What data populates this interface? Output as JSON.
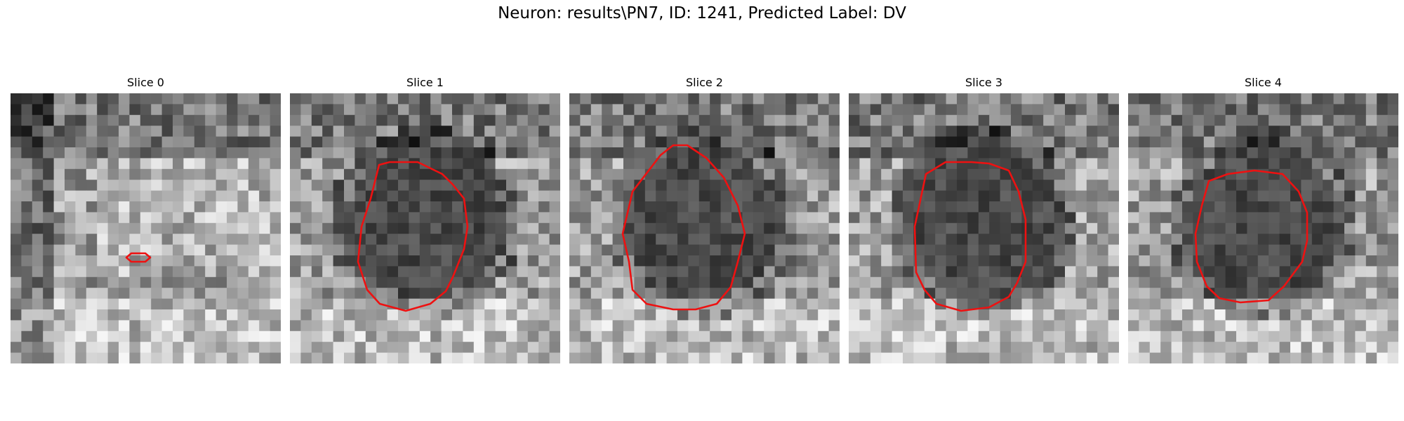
{
  "figure": {
    "title": "Neuron: results\\PN7, ID: 1241, Predicted Label: DV",
    "contour_color": "#ee1111",
    "panels": [
      {
        "title": "Slice 0",
        "seed": 11,
        "dark_blob": false,
        "contour": "small"
      },
      {
        "title": "Slice 1",
        "seed": 23,
        "dark_blob": true,
        "contour": "blob"
      },
      {
        "title": "Slice 2",
        "seed": 37,
        "dark_blob": true,
        "contour": "blob"
      },
      {
        "title": "Slice 3",
        "seed": 41,
        "dark_blob": true,
        "contour": "blob"
      },
      {
        "title": "Slice 4",
        "seed": 53,
        "dark_blob": true,
        "contour": "blob"
      }
    ]
  }
}
